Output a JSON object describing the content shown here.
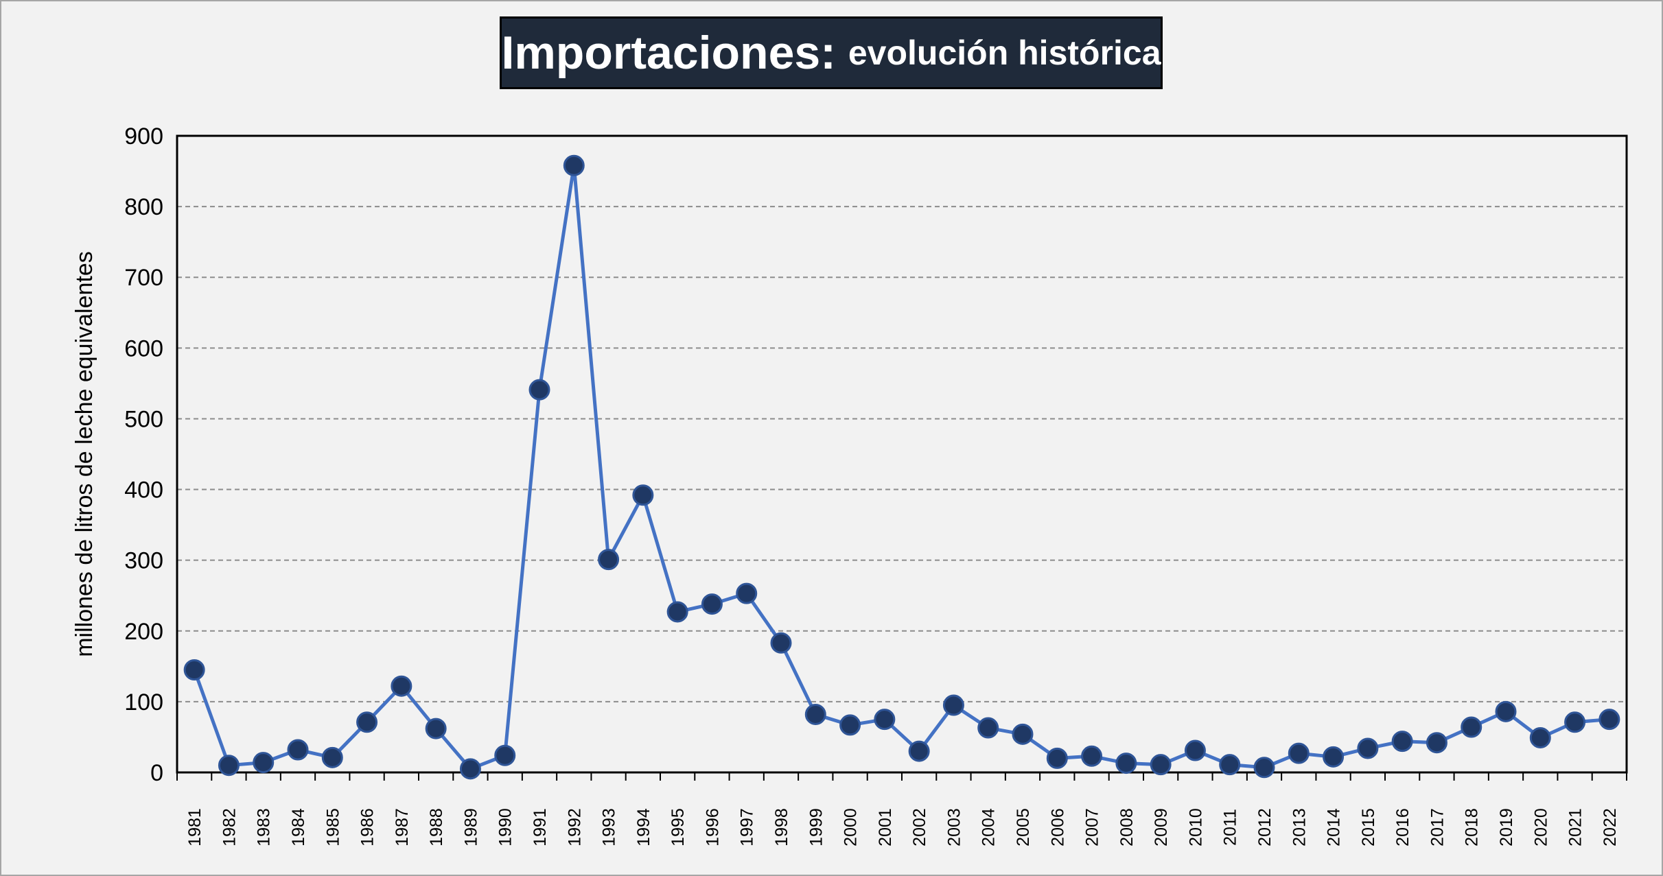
{
  "chart_data": {
    "type": "line",
    "title": "Importaciones:",
    "subtitle": "evolución histórica",
    "xlabel": "",
    "ylabel": "millones de litros de leche equivalentes",
    "ylim": [
      0,
      900
    ],
    "yticks": [
      0,
      100,
      200,
      300,
      400,
      500,
      600,
      700,
      800,
      900
    ],
    "grid": "horizontal dashed",
    "legend": "none",
    "colors": {
      "line": "#4472c4",
      "marker_fill": "#1f3864",
      "marker_edge": "#2f5597"
    },
    "categories": [
      "1981",
      "1982",
      "1983",
      "1984",
      "1985",
      "1986",
      "1987",
      "1988",
      "1989",
      "1990",
      "1991",
      "1992",
      "1993",
      "1994",
      "1995",
      "1996",
      "1997",
      "1998",
      "1999",
      "2000",
      "2001",
      "2002",
      "2003",
      "2004",
      "2005",
      "2006",
      "2007",
      "2008",
      "2009",
      "2010",
      "2011",
      "2012",
      "2013",
      "2014",
      "2015",
      "2016",
      "2017",
      "2018",
      "2019",
      "2020",
      "2021",
      "2022"
    ],
    "series": [
      {
        "values": [
          145,
          10,
          14,
          32,
          21,
          71,
          122,
          62,
          5,
          24,
          541,
          858,
          301,
          392,
          227,
          238,
          253,
          183,
          82,
          67,
          75,
          30,
          95,
          63,
          54,
          20,
          23,
          13,
          11,
          31,
          11,
          7,
          27,
          22,
          34,
          44,
          42,
          64,
          86,
          49,
          71,
          75
        ]
      }
    ]
  }
}
